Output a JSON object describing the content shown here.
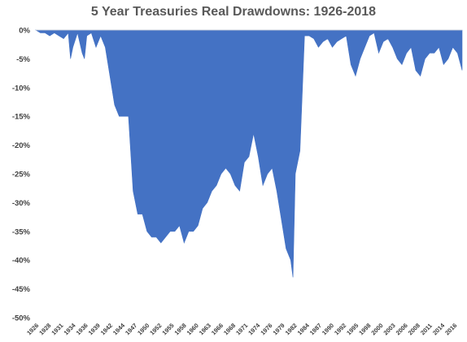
{
  "chart_data": {
    "type": "area",
    "title": "5 Year Treasuries Real Drawdowns: 1926-2018",
    "xlabel": "",
    "ylabel": "",
    "x_range": [
      1926,
      2018
    ],
    "ylim": [
      -50,
      0
    ],
    "y_ticks": [
      0,
      -5,
      -10,
      -15,
      -20,
      -25,
      -30,
      -35,
      -40,
      -45,
      -50
    ],
    "y_tick_labels": [
      "0%",
      "-5%",
      "-10%",
      "-15%",
      "-20%",
      "-25%",
      "-30%",
      "-35%",
      "-40%",
      "-45%",
      "-50%"
    ],
    "x_tick_labels": [
      "1926",
      "1928",
      "1931",
      "1934",
      "1936",
      "1939",
      "1942",
      "1944",
      "1947",
      "1950",
      "1952",
      "1955",
      "1958",
      "1960",
      "1963",
      "1966",
      "1968",
      "1971",
      "1974",
      "1976",
      "1979",
      "1982",
      "1984",
      "1987",
      "1990",
      "1992",
      "1995",
      "1998",
      "2000",
      "2003",
      "2006",
      "2008",
      "2011",
      "2014",
      "2016"
    ],
    "grid": false,
    "legend": "none",
    "color": "#4472C4",
    "series": [
      {
        "x": [
          1926,
          1927,
          1928,
          1929,
          1930,
          1931,
          1932,
          1933,
          1933.5,
          1934,
          1935,
          1936,
          1936.5,
          1937,
          1938,
          1939,
          1940,
          1941,
          1942,
          1943,
          1944,
          1945,
          1946,
          1947,
          1948,
          1949,
          1950,
          1951,
          1952,
          1953,
          1954,
          1955,
          1956,
          1957,
          1958,
          1959,
          1960,
          1961,
          1962,
          1963,
          1964,
          1965,
          1966,
          1967,
          1968,
          1969,
          1970,
          1971,
          1972,
          1973,
          1974,
          1975,
          1976,
          1977,
          1978,
          1979,
          1980,
          1981,
          1981.5,
          1982,
          1983,
          1984,
          1985,
          1986,
          1987,
          1988,
          1989,
          1990,
          1991,
          1992,
          1993,
          1994,
          1995,
          1996,
          1997,
          1998,
          1999,
          2000,
          2001,
          2002,
          2003,
          2004,
          2005,
          2006,
          2007,
          2008,
          2009,
          2010,
          2011,
          2012,
          2013,
          2014,
          2015,
          2016,
          2017,
          2018
        ],
        "values": [
          0,
          -0.5,
          -0.5,
          -1,
          -0.5,
          -1,
          -1.5,
          -0.5,
          -5,
          -3,
          -0.5,
          -4,
          -5,
          -1,
          -0.5,
          -3,
          -1,
          -3,
          -8,
          -13,
          -15,
          -15,
          -15,
          -28,
          -32,
          -32,
          -35,
          -36,
          -36,
          -37,
          -36,
          -35,
          -35,
          -34,
          -37,
          -35,
          -35,
          -34,
          -31,
          -30,
          -28,
          -27,
          -25,
          -24,
          -25,
          -27,
          -28,
          -23,
          -22,
          -18,
          -22,
          -27,
          -25,
          -24,
          -28,
          -33,
          -38,
          -40,
          -43,
          -25,
          -21,
          -1,
          -1,
          -1.5,
          -3,
          -2,
          -1.5,
          -3,
          -2,
          -1.5,
          -1,
          -6,
          -8,
          -5,
          -3,
          -1,
          -0.5,
          -4,
          -2,
          -1.5,
          -3,
          -5,
          -6,
          -4,
          -3,
          -7,
          -8,
          -5,
          -4,
          -4,
          -3,
          -6,
          -5,
          -3,
          -4,
          -7
        ]
      }
    ]
  }
}
